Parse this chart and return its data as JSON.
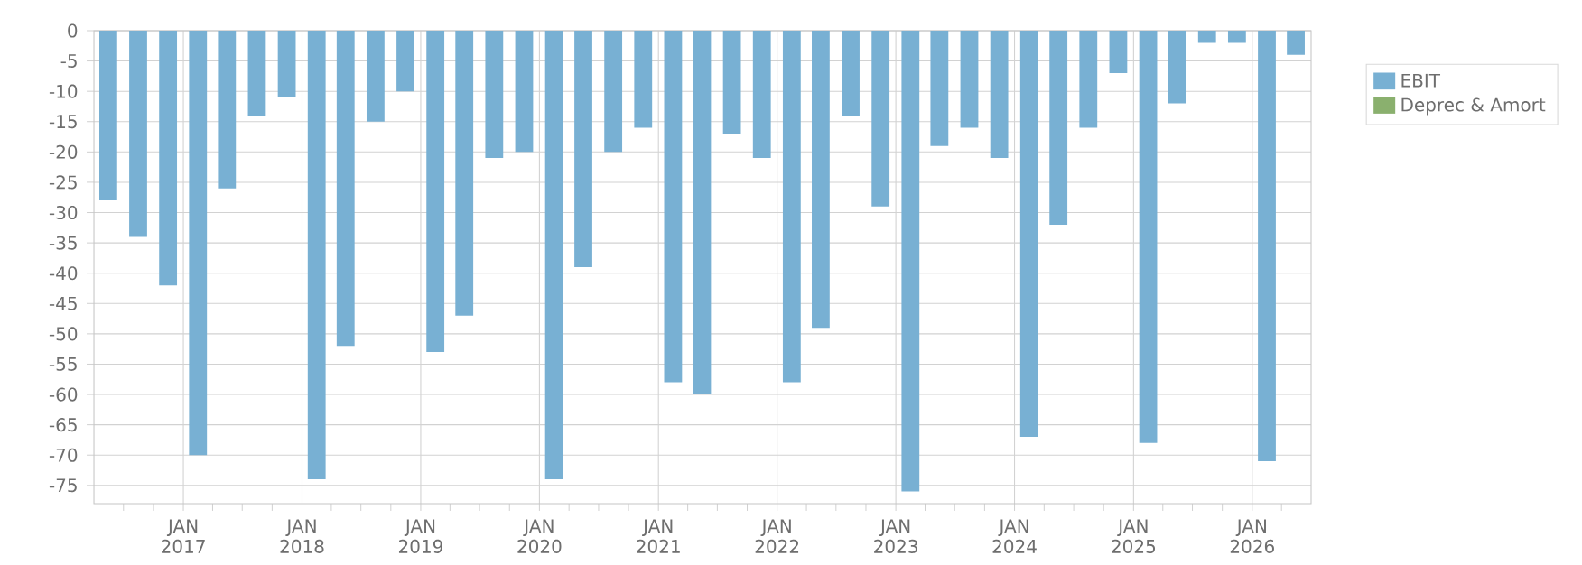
{
  "chart_data": {
    "type": "bar",
    "x": [
      "2016-05-15",
      "2016-08-15",
      "2016-11-15",
      "2017-02-15",
      "2017-05-15",
      "2017-08-15",
      "2017-11-15",
      "2018-02-15",
      "2018-05-15",
      "2018-08-15",
      "2018-11-15",
      "2019-02-15",
      "2019-05-15",
      "2019-08-15",
      "2019-11-15",
      "2020-02-15",
      "2020-05-15",
      "2020-08-15",
      "2020-11-15",
      "2021-02-15",
      "2021-05-15",
      "2021-08-15",
      "2021-11-15",
      "2022-02-15",
      "2022-05-15",
      "2022-08-15",
      "2022-11-15",
      "2023-02-15",
      "2023-05-15",
      "2023-08-15",
      "2023-11-15",
      "2024-02-15",
      "2024-05-15",
      "2024-08-15",
      "2024-11-15",
      "2025-02-15",
      "2025-05-15",
      "2025-08-15",
      "2025-11-15",
      "2026-02-15",
      "2026-05-15"
    ],
    "series": [
      {
        "name": "EBIT",
        "color": "#78b0d3",
        "values": [
          -28,
          -34,
          -42,
          -70,
          -26,
          -14,
          -11,
          -74,
          -52,
          -15,
          -10,
          -53,
          -47,
          -21,
          -20,
          -74,
          -39,
          -20,
          -16,
          -58,
          -60,
          -17,
          -21,
          -58,
          -49,
          -14,
          -29,
          -76,
          -19,
          -16,
          -21,
          -67,
          -32,
          -16,
          -7,
          -68,
          -12,
          -2,
          -2,
          -71,
          -4
        ]
      },
      {
        "name": "Deprec & Amort",
        "color": "#8ab06e",
        "values": [
          null,
          null,
          null,
          null,
          null,
          null,
          null,
          null,
          null,
          null,
          null,
          null,
          null,
          null,
          null,
          null,
          null,
          null,
          null,
          null,
          null,
          null,
          null,
          null,
          null,
          null,
          null,
          null,
          null,
          null,
          null,
          null,
          null,
          null,
          null,
          null,
          null,
          null,
          null,
          null,
          null
        ]
      }
    ],
    "xlim": [
      "2016-04-01",
      "2026-07-01"
    ],
    "xticks": [
      {
        "value": "2016-07-01",
        "label": null
      },
      {
        "value": "2016-10-01",
        "label": null
      },
      {
        "value": "2017-01-01",
        "label": "JAN 2017"
      },
      {
        "value": "2017-04-01",
        "label": null
      },
      {
        "value": "2017-07-01",
        "label": null
      },
      {
        "value": "2017-10-01",
        "label": null
      },
      {
        "value": "2018-01-01",
        "label": "JAN 2018"
      },
      {
        "value": "2018-04-01",
        "label": null
      },
      {
        "value": "2018-07-01",
        "label": null
      },
      {
        "value": "2018-10-01",
        "label": null
      },
      {
        "value": "2019-01-01",
        "label": "JAN 2019"
      },
      {
        "value": "2019-04-01",
        "label": null
      },
      {
        "value": "2019-07-01",
        "label": null
      },
      {
        "value": "2019-10-01",
        "label": null
      },
      {
        "value": "2020-01-01",
        "label": "JAN 2020"
      },
      {
        "value": "2020-04-01",
        "label": null
      },
      {
        "value": "2020-07-01",
        "label": null
      },
      {
        "value": "2020-10-01",
        "label": null
      },
      {
        "value": "2021-01-01",
        "label": "JAN 2021"
      },
      {
        "value": "2021-04-01",
        "label": null
      },
      {
        "value": "2021-07-01",
        "label": null
      },
      {
        "value": "2021-10-01",
        "label": null
      },
      {
        "value": "2022-01-01",
        "label": "JAN 2022"
      },
      {
        "value": "2022-04-01",
        "label": null
      },
      {
        "value": "2022-07-01",
        "label": null
      },
      {
        "value": "2022-10-01",
        "label": null
      },
      {
        "value": "2023-01-01",
        "label": "JAN 2023"
      },
      {
        "value": "2023-04-01",
        "label": null
      },
      {
        "value": "2023-07-01",
        "label": null
      },
      {
        "value": "2023-10-01",
        "label": null
      },
      {
        "value": "2024-01-01",
        "label": "JAN 2024"
      },
      {
        "value": "2024-04-01",
        "label": null
      },
      {
        "value": "2024-07-01",
        "label": null
      },
      {
        "value": "2024-10-01",
        "label": null
      },
      {
        "value": "2025-01-01",
        "label": "JAN 2025"
      },
      {
        "value": "2025-04-01",
        "label": null
      },
      {
        "value": "2025-07-01",
        "label": null
      },
      {
        "value": "2025-10-01",
        "label": null
      },
      {
        "value": "2026-01-01",
        "label": "JAN 2026"
      },
      {
        "value": "2026-04-01",
        "label": null
      }
    ],
    "ylim": [
      -78,
      0
    ],
    "yticks": [
      0,
      -5,
      -10,
      -15,
      -20,
      -25,
      -30,
      -35,
      -40,
      -45,
      -50,
      -55,
      -60,
      -65,
      -70,
      -75
    ],
    "grid": true,
    "legend": "top right"
  }
}
